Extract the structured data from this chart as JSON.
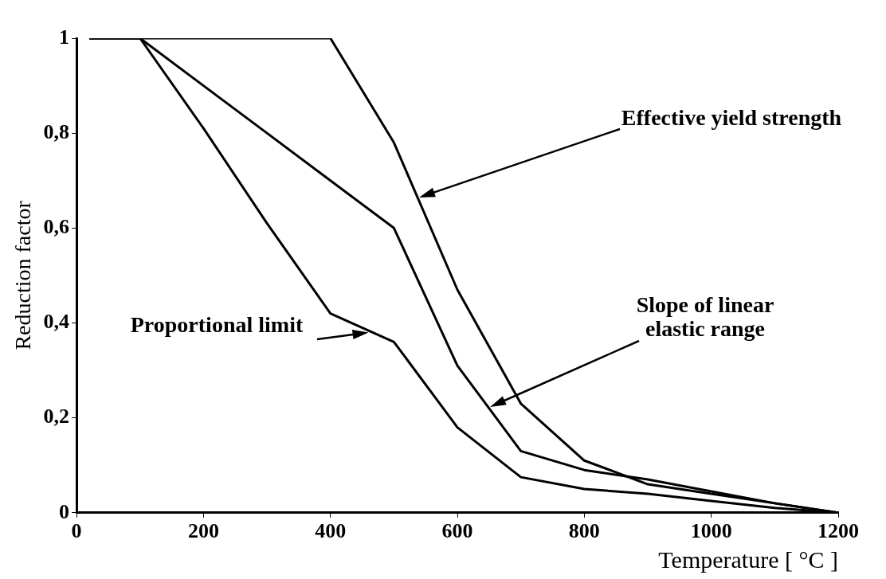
{
  "chart_data": {
    "type": "line",
    "xlabel": "Temperature [ °C ]",
    "ylabel": "Reduction factor",
    "x": [
      20,
      100,
      200,
      300,
      400,
      500,
      600,
      700,
      800,
      900,
      1000,
      1100,
      1200
    ],
    "series": [
      {
        "color": "#000000",
        "values": [
          1,
          1,
          1,
          1,
          1,
          0.78,
          0.47,
          0.23,
          0.11,
          0.06,
          0.04,
          0.02,
          0
        ]
      },
      {
        "color": "#000000",
        "values": [
          1,
          1,
          0.9,
          0.8,
          0.7,
          0.6,
          0.31,
          0.13,
          0.09,
          0.07,
          0.045,
          0.02,
          0
        ]
      },
      {
        "color": "#000000",
        "values": [
          1,
          1,
          0.81,
          0.61,
          0.42,
          0.36,
          0.18,
          0.075,
          0.05,
          0.04,
          0.025,
          0.01,
          0
        ]
      }
    ],
    "xlim": [
      0,
      1200
    ],
    "xticks": [
      0,
      200,
      400,
      600,
      800,
      1000,
      1200
    ],
    "ylim": [
      0,
      1
    ],
    "yticks": [
      0,
      {
        "value": 0.2,
        "label": "0,2"
      },
      {
        "value": 0.4,
        "label": "0,4"
      },
      {
        "value": 0.6,
        "label": "0,6"
      },
      {
        "value": 0.8,
        "label": "0,8"
      },
      1
    ],
    "annotations": [
      "Effective yield strength",
      "Slope of linear\nelastic range",
      {
        "text": "Proportional limit",
        "x": 460,
        "y": 0.38
      }
    ],
    "grid": false,
    "legend": false,
    "marker": "none",
    "line_style": "solid"
  }
}
